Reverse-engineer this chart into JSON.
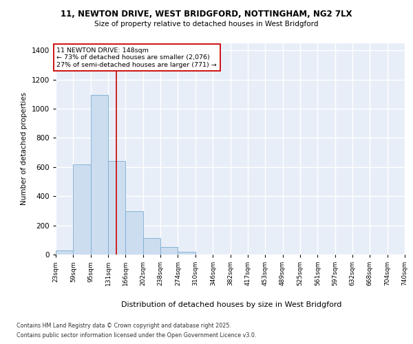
{
  "title_line1": "11, NEWTON DRIVE, WEST BRIDGFORD, NOTTINGHAM, NG2 7LX",
  "title_line2": "Size of property relative to detached houses in West Bridgford",
  "xlabel": "Distribution of detached houses by size in West Bridgford",
  "ylabel": "Number of detached properties",
  "bin_labels": [
    "23sqm",
    "59sqm",
    "95sqm",
    "131sqm",
    "166sqm",
    "202sqm",
    "238sqm",
    "274sqm",
    "310sqm",
    "346sqm",
    "382sqm",
    "417sqm",
    "453sqm",
    "489sqm",
    "525sqm",
    "561sqm",
    "597sqm",
    "632sqm",
    "668sqm",
    "704sqm",
    "740sqm"
  ],
  "bin_edges": [
    23,
    59,
    95,
    131,
    166,
    202,
    238,
    274,
    310,
    346,
    382,
    417,
    453,
    489,
    525,
    561,
    597,
    632,
    668,
    704,
    740
  ],
  "bar_heights": [
    30,
    620,
    1095,
    640,
    295,
    115,
    50,
    20,
    0,
    0,
    0,
    0,
    0,
    0,
    0,
    0,
    0,
    0,
    0,
    0
  ],
  "bar_color": "#ccddf0",
  "bar_edge_color": "#7aabcf",
  "property_size": 148,
  "red_line_color": "#cc0000",
  "annotation_line1": "11 NEWTON DRIVE: 148sqm",
  "annotation_line2": "← 73% of detached houses are smaller (2,076)",
  "annotation_line3": "27% of semi-detached houses are larger (771) →",
  "annotation_box_facecolor": "#ffffff",
  "annotation_box_edgecolor": "#cc0000",
  "ylim": [
    0,
    1450
  ],
  "yticks": [
    0,
    200,
    400,
    600,
    800,
    1000,
    1200,
    1400
  ],
  "plot_bg_color": "#e8eef8",
  "grid_color": "#ffffff",
  "fig_bg_color": "#ffffff",
  "footer_line1": "Contains HM Land Registry data © Crown copyright and database right 2025.",
  "footer_line2": "Contains public sector information licensed under the Open Government Licence v3.0."
}
